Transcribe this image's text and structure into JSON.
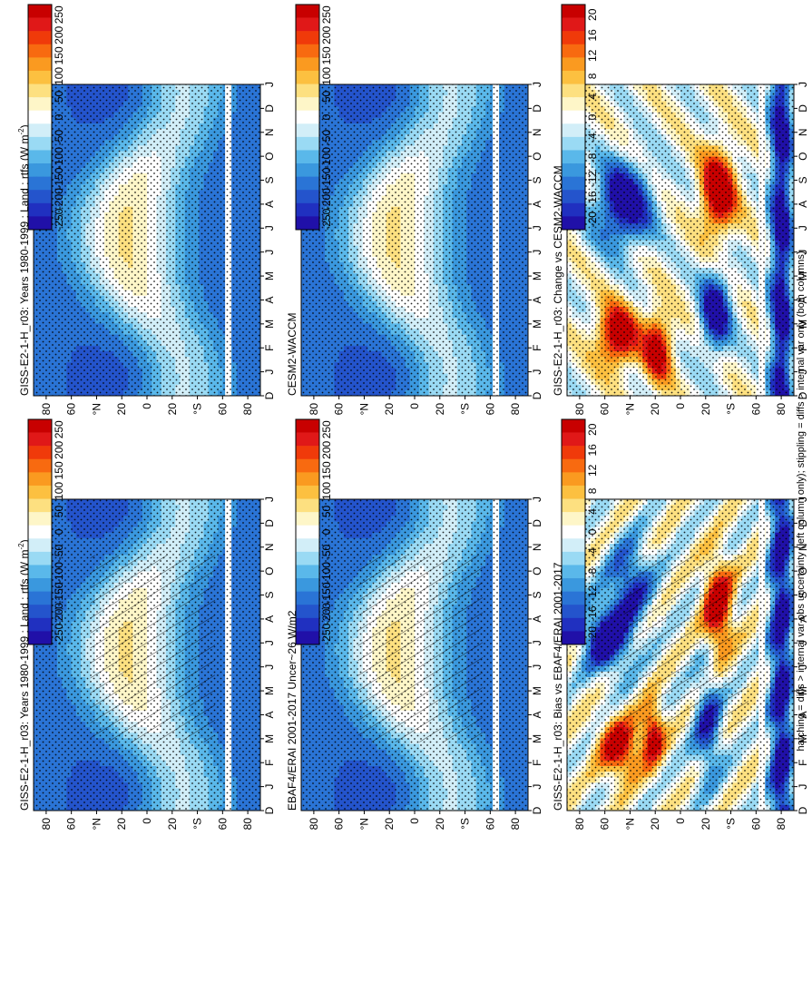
{
  "footnote": "hatching = diffs > internal var-obs uncertainty (left column only); stippling = diffs > internal var only (both columns)",
  "colors": {
    "diverging": [
      "#c80000",
      "#e01818",
      "#f03a0a",
      "#f86a10",
      "#fa9a20",
      "#fcc040",
      "#fde080",
      "#fef6c8",
      "#ffffff",
      "#d2eef8",
      "#9adaf4",
      "#5ab8ea",
      "#3a98de",
      "#2a74d6",
      "#2454cc",
      "#2030c0",
      "#2010a8"
    ],
    "land_mask": "#ffffff"
  },
  "chart_data": [
    {
      "type": "heatmap",
      "id": "p_tl",
      "title": "GISS-E2-1-H_r03: Years 1980-1999 : Land : rtfs (W m",
      "title_sup": "-2",
      "title_end": ")",
      "x_ticks": [
        "D",
        "J",
        "F",
        "M",
        "A",
        "M",
        "J",
        "J",
        "A",
        "S",
        "O",
        "N",
        "D",
        "J"
      ],
      "y_ticks": [
        "80",
        "60",
        "°N",
        "20",
        "0",
        "20",
        "°S",
        "60",
        "80"
      ],
      "colorbar_labels": [
        "250",
        "200",
        "150",
        "100",
        "50",
        "0",
        "-50",
        "-100",
        "-150",
        "-200",
        "-250"
      ],
      "zlim": [
        -260,
        260
      ],
      "hatching": true,
      "stippling": true,
      "field": "climo"
    },
    {
      "type": "heatmap",
      "id": "p_tr",
      "title": "GISS-E2-1-H_r03: Years 1980-1999 : Land : rtfs (W m",
      "title_sup": "-2",
      "title_end": ")",
      "x_ticks": [
        "D",
        "J",
        "F",
        "M",
        "A",
        "M",
        "J",
        "J",
        "A",
        "S",
        "O",
        "N",
        "D",
        "J"
      ],
      "y_ticks": [
        "80",
        "60",
        "°N",
        "20",
        "0",
        "20",
        "°S",
        "60",
        "80"
      ],
      "colorbar_labels": [
        "250",
        "200",
        "150",
        "100",
        "50",
        "0",
        "-50",
        "-100",
        "-150",
        "-200",
        "-250"
      ],
      "zlim": [
        -260,
        260
      ],
      "hatching": false,
      "stippling": true,
      "field": "climo"
    },
    {
      "type": "heatmap",
      "id": "p_ml",
      "title": "EBAF4/ERAI 2001-2017 Uncer~26 W/m2",
      "x_ticks": [
        "D",
        "J",
        "F",
        "M",
        "A",
        "M",
        "J",
        "J",
        "A",
        "S",
        "O",
        "N",
        "D",
        "J"
      ],
      "y_ticks": [
        "80",
        "60",
        "°N",
        "20",
        "0",
        "20",
        "°S",
        "60",
        "80"
      ],
      "colorbar_labels": [
        "250",
        "200",
        "150",
        "100",
        "50",
        "0",
        "-50",
        "-100",
        "-150",
        "-200",
        "-250"
      ],
      "zlim": [
        -260,
        260
      ],
      "hatching": true,
      "stippling": true,
      "field": "climo"
    },
    {
      "type": "heatmap",
      "id": "p_mr",
      "title": "CESM2-WACCM",
      "x_ticks": [
        "D",
        "J",
        "F",
        "M",
        "A",
        "M",
        "J",
        "J",
        "A",
        "S",
        "O",
        "N",
        "D",
        "J"
      ],
      "y_ticks": [
        "80",
        "60",
        "°N",
        "20",
        "0",
        "20",
        "°S",
        "60",
        "80"
      ],
      "colorbar_labels": [
        "250",
        "200",
        "150",
        "100",
        "50",
        "0",
        "-50",
        "-100",
        "-150",
        "-200",
        "-250"
      ],
      "zlim": [
        -260,
        260
      ],
      "hatching": false,
      "stippling": true,
      "field": "climo"
    },
    {
      "type": "heatmap",
      "id": "p_bl",
      "title": "GISS-E2-1-H_r03: Bias vs EBAF4/ERAI 2001-2017",
      "x_ticks": [
        "D",
        "J",
        "F",
        "M",
        "A",
        "M",
        "J",
        "J",
        "A",
        "S",
        "O",
        "N",
        "D",
        "J"
      ],
      "y_ticks": [
        "80",
        "60",
        "°N",
        "20",
        "0",
        "20",
        "°S",
        "60",
        "80"
      ],
      "colorbar_labels": [
        "20",
        "16",
        "12",
        "8",
        "4",
        "0",
        "-4",
        "-8",
        "-12",
        "-16",
        "-20"
      ],
      "zlim": [
        -22,
        22
      ],
      "hatching": true,
      "stippling": true,
      "field": "bias"
    },
    {
      "type": "heatmap",
      "id": "p_br",
      "title": "GISS-E2-1-H_r03: Change vs CESM2-WACCM",
      "x_ticks": [
        "D",
        "J",
        "F",
        "M",
        "A",
        "M",
        "J",
        "J",
        "A",
        "S",
        "O",
        "N",
        "D",
        "J"
      ],
      "y_ticks": [
        "80",
        "60",
        "°N",
        "20",
        "0",
        "20",
        "°S",
        "60",
        "80"
      ],
      "colorbar_labels": [
        "20",
        "16",
        "12",
        "8",
        "4",
        "0",
        "-4",
        "-8",
        "-12",
        "-16",
        "-20"
      ],
      "zlim": [
        -22,
        22
      ],
      "hatching": false,
      "stippling": true,
      "field": "change"
    }
  ]
}
